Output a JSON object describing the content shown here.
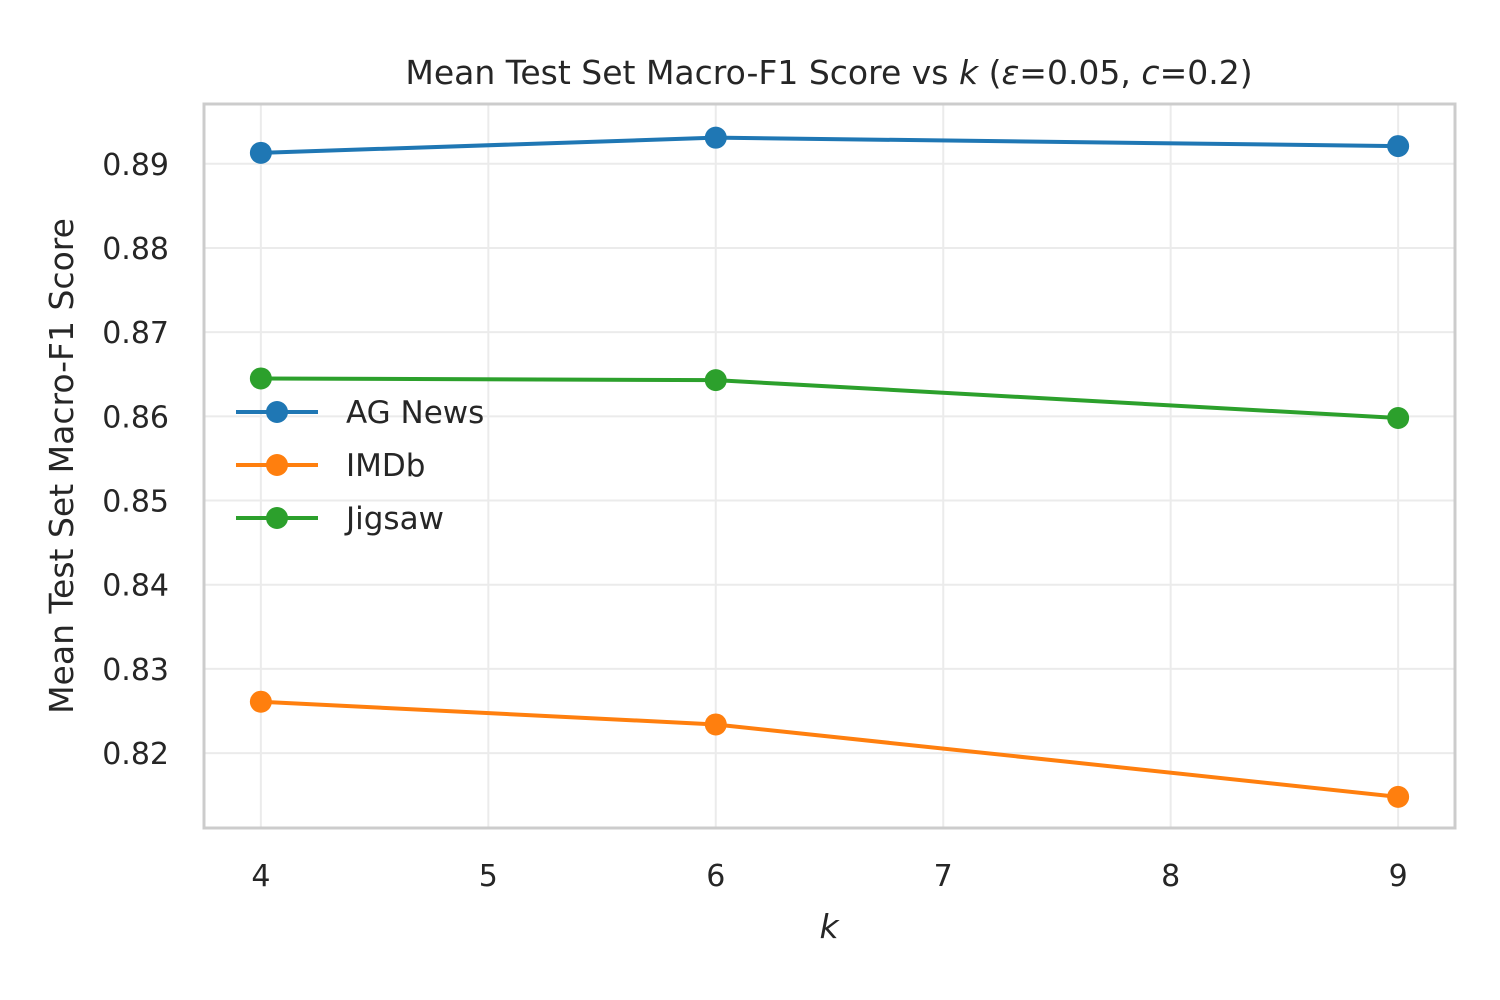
{
  "chart_data": {
    "type": "line",
    "title_main": "Mean Test Set Macro-F1 Score vs ",
    "title_var": "k",
    "title_params_open": " (",
    "title_eps_sym": "ε",
    "title_eps_val": "=0.05, ",
    "title_c_sym": "c",
    "title_c_val": "=0.2)",
    "xlabel": "k",
    "ylabel": "Mean Test Set Macro-F1 Score",
    "xlim": [
      3.75,
      9.25
    ],
    "ylim": [
      0.8111,
      0.8971
    ],
    "xticks": [
      4,
      5,
      6,
      7,
      8,
      9
    ],
    "xtick_labels": [
      "4",
      "5",
      "6",
      "7",
      "8",
      "9"
    ],
    "yticks": [
      0.82,
      0.83,
      0.84,
      0.85,
      0.86,
      0.87,
      0.88,
      0.89
    ],
    "ytick_labels": [
      "0.82",
      "0.83",
      "0.84",
      "0.85",
      "0.86",
      "0.87",
      "0.88",
      "0.89"
    ],
    "grid": true,
    "legend_position": "center-left",
    "x": [
      4,
      6,
      9
    ],
    "series": [
      {
        "name": "AG News",
        "color": "#1f77b4",
        "values": [
          0.8913,
          0.8931,
          0.8921
        ]
      },
      {
        "name": "IMDb",
        "color": "#ff7f0e",
        "values": [
          0.8261,
          0.8234,
          0.8148
        ]
      },
      {
        "name": "Jigsaw",
        "color": "#2ca02c",
        "values": [
          0.8645,
          0.8643,
          0.8598
        ]
      }
    ]
  }
}
